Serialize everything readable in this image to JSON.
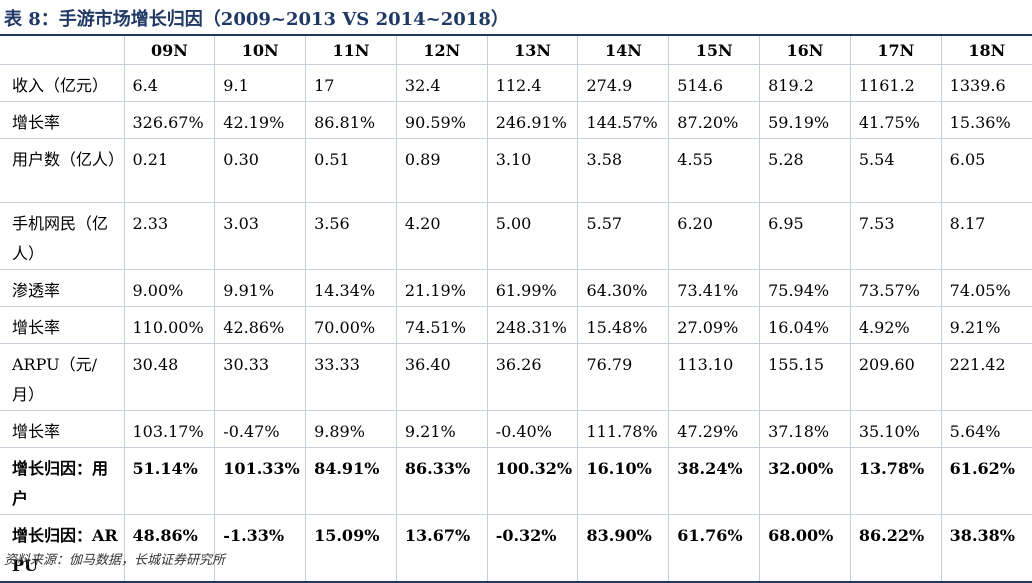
{
  "title": "表 8：手游市场增长归因（2009~2013 VS 2014~2018）",
  "table": {
    "columns": [
      "",
      "09N",
      "10N",
      "11N",
      "12N",
      "13N",
      "14N",
      "15N",
      "16N",
      "17N",
      "18N"
    ],
    "rows": [
      {
        "label": "收入（亿元）",
        "bold": false,
        "h": 1,
        "values": [
          "6.4",
          "9.1",
          "17",
          "32.4",
          "112.4",
          "274.9",
          "514.6",
          "819.2",
          "1161.2",
          "1339.6"
        ]
      },
      {
        "label": "增长率",
        "bold": false,
        "h": 1,
        "values": [
          "326.67%",
          "42.19%",
          "86.81%",
          "90.59%",
          "246.91%",
          "144.57%",
          "87.20%",
          "59.19%",
          "41.75%",
          "15.36%"
        ]
      },
      {
        "label": "用户数（亿人）",
        "bold": false,
        "h": 2,
        "values": [
          "0.21",
          "0.30",
          "0.51",
          "0.89",
          "3.10",
          "3.58",
          "4.55",
          "5.28",
          "5.54",
          "6.05"
        ]
      },
      {
        "label": "手机网民（亿人）",
        "bold": false,
        "h": 2,
        "values": [
          "2.33",
          "3.03",
          "3.56",
          "4.20",
          "5.00",
          "5.57",
          "6.20",
          "6.95",
          "7.53",
          "8.17"
        ]
      },
      {
        "label": "渗透率",
        "bold": false,
        "h": 1,
        "values": [
          "9.00%",
          "9.91%",
          "14.34%",
          "21.19%",
          "61.99%",
          "64.30%",
          "73.41%",
          "75.94%",
          "73.57%",
          "74.05%"
        ]
      },
      {
        "label": "增长率",
        "bold": false,
        "h": 1,
        "values": [
          "110.00%",
          "42.86%",
          "70.00%",
          "74.51%",
          "248.31%",
          "15.48%",
          "27.09%",
          "16.04%",
          "4.92%",
          "9.21%"
        ]
      },
      {
        "label": "ARPU（元/月）",
        "bold": false,
        "h": 2,
        "values": [
          "30.48",
          "30.33",
          "33.33",
          "36.40",
          "36.26",
          "76.79",
          "113.10",
          "155.15",
          "209.60",
          "221.42"
        ]
      },
      {
        "label": "增长率",
        "bold": false,
        "h": 1,
        "values": [
          "103.17%",
          "-0.47%",
          "9.89%",
          "9.21%",
          "-0.40%",
          "111.78%",
          "47.29%",
          "37.18%",
          "35.10%",
          "5.64%"
        ]
      },
      {
        "label": "增长归因：用户",
        "bold": true,
        "h": 2,
        "values": [
          "51.14%",
          "101.33%",
          "84.91%",
          "86.33%",
          "100.32%",
          "16.10%",
          "38.24%",
          "32.00%",
          "13.78%",
          "61.62%"
        ]
      },
      {
        "label": "增长归因：ARPU",
        "bold": true,
        "h": 2,
        "values": [
          "48.86%",
          "-1.33%",
          "15.09%",
          "13.67%",
          "-0.32%",
          "83.90%",
          "61.76%",
          "68.00%",
          "86.22%",
          "38.38%"
        ]
      }
    ]
  },
  "source": "资料来源：伽马数据，长城证券研究所"
}
